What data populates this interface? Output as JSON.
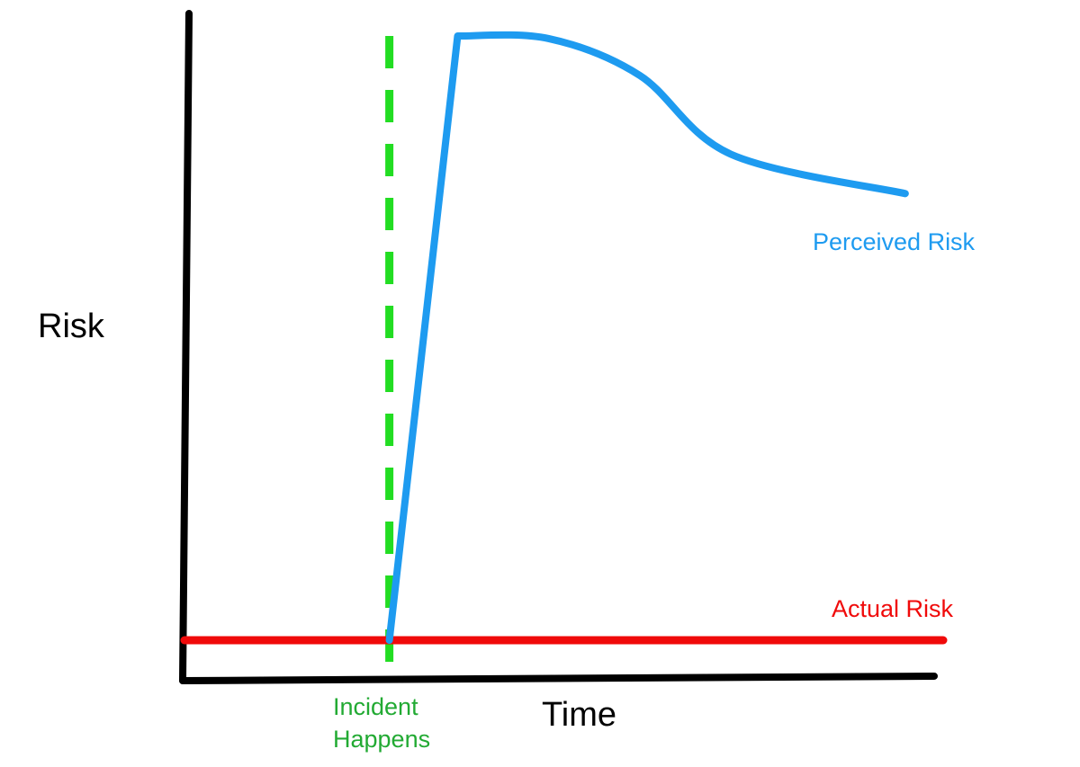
{
  "chart_data": {
    "type": "line",
    "title": "",
    "xlabel": "Time",
    "ylabel": "Risk",
    "grid": false,
    "xlim": [
      0,
      100
    ],
    "ylim": [
      0,
      100
    ],
    "colors": {
      "axis": "#000000",
      "perceived": "#1e9bf0",
      "actual": "#f00a0a",
      "incident": "#22dd22"
    },
    "series": [
      {
        "name": "Perceived Risk",
        "x": [
          27,
          36,
          48,
          60,
          72,
          95
        ],
        "y": [
          6,
          98,
          97.6,
          92,
          80,
          74
        ]
      },
      {
        "name": "Actual Risk",
        "x": [
          0,
          100
        ],
        "y": [
          6,
          6
        ]
      }
    ],
    "annotations": [
      {
        "text_lines": [
          "Incident",
          "Happens"
        ],
        "x": 27
      }
    ]
  }
}
